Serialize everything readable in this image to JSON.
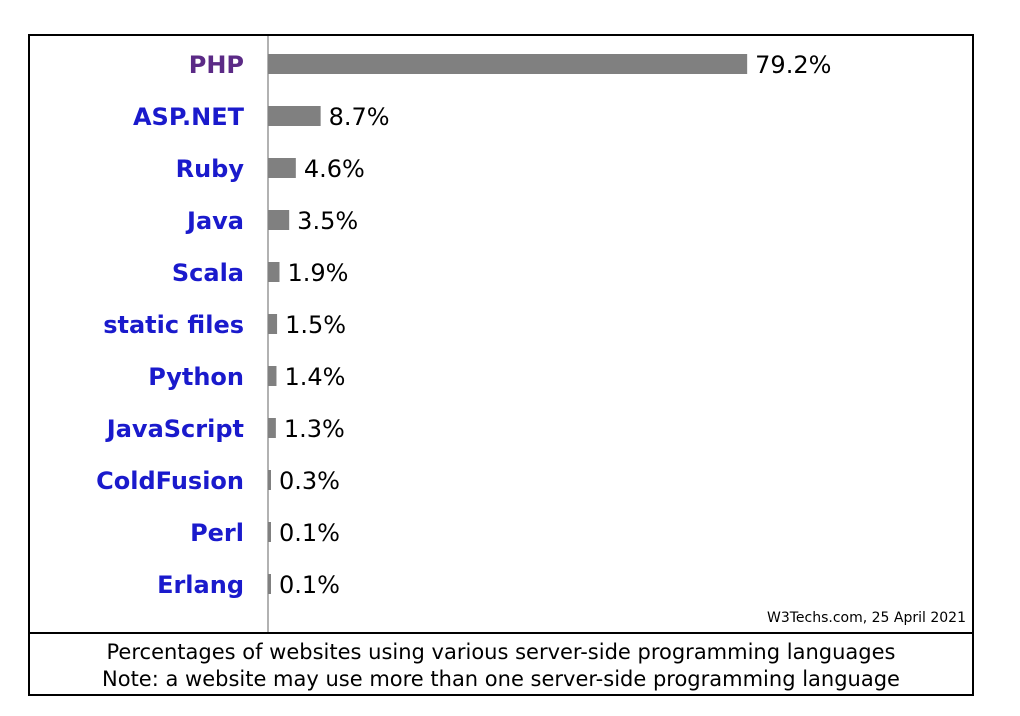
{
  "chart_data": {
    "type": "bar",
    "orientation": "horizontal",
    "categories": [
      "PHP",
      "ASP.NET",
      "Ruby",
      "Java",
      "Scala",
      "static files",
      "Python",
      "JavaScript",
      "ColdFusion",
      "Perl",
      "Erlang"
    ],
    "values": [
      79.2,
      8.7,
      4.6,
      3.5,
      1.9,
      1.5,
      1.4,
      1.3,
      0.3,
      0.1,
      0.1
    ],
    "value_labels": [
      "79.2%",
      "8.7%",
      "4.6%",
      "3.5%",
      "1.9%",
      "1.5%",
      "1.4%",
      "1.3%",
      "0.3%",
      "0.1%",
      "0.1%"
    ],
    "highlighted_category": "PHP",
    "xlim": [
      0,
      100
    ],
    "grid": false,
    "source": "W3Techs.com, 25 April 2021"
  },
  "caption": {
    "line1": "Percentages of websites using various server-side programming languages",
    "line2": "Note: a website may use more than one server-side programming language"
  },
  "colors": {
    "bar": "#808080",
    "category_label": "#1a1acc",
    "highlighted_label": "#5b2a86",
    "axis": "#999999"
  }
}
